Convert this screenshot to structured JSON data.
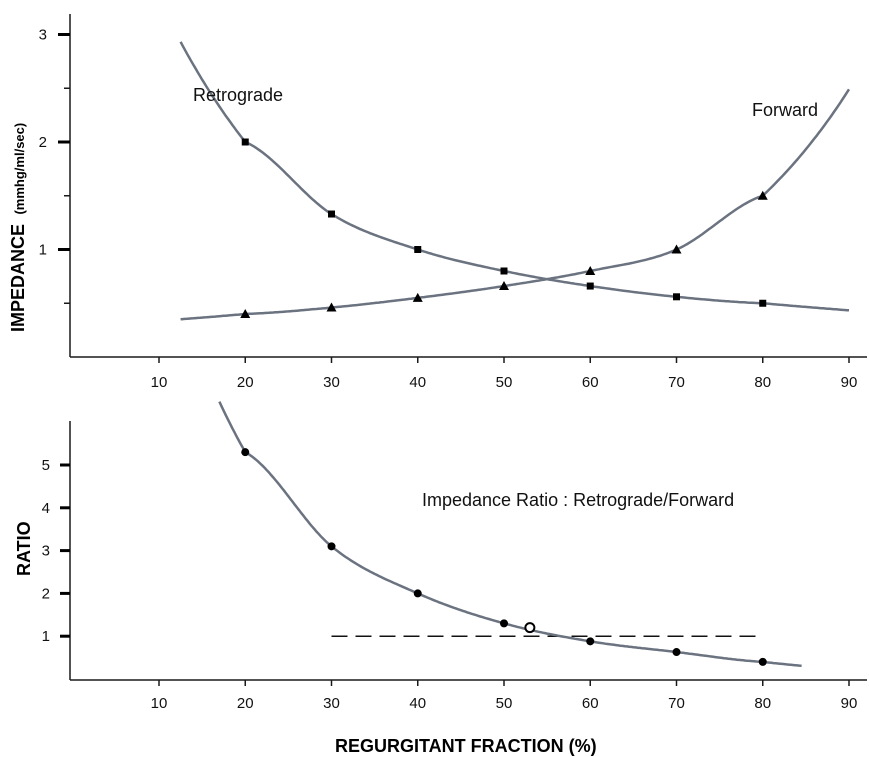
{
  "chart_data": [
    {
      "type": "line",
      "ylabel": "IMPEDANCE",
      "ylabel_unit": "(mmhg/ml/sec)",
      "xlim": [
        0,
        90
      ],
      "ylim": [
        0,
        3
      ],
      "x_ticks": [
        10,
        20,
        30,
        40,
        50,
        60,
        70,
        80,
        90
      ],
      "y_ticks": [
        1,
        2,
        3
      ],
      "series": [
        {
          "name": "Retrograde",
          "marker": "square",
          "x": [
            20,
            30,
            40,
            50,
            60,
            70,
            80
          ],
          "y": [
            2.0,
            1.33,
            1.0,
            0.8,
            0.66,
            0.56,
            0.5
          ]
        },
        {
          "name": "Forward",
          "marker": "triangle",
          "x": [
            20,
            30,
            40,
            50,
            60,
            70,
            80
          ],
          "y": [
            0.4,
            0.46,
            0.55,
            0.66,
            0.8,
            1.0,
            1.5
          ]
        }
      ]
    },
    {
      "type": "line",
      "title": "Impedance Ratio : Retrograde/Forward",
      "xlabel": "REGURGITANT FRACTION (%)",
      "ylabel": "RATIO",
      "xlim": [
        0,
        90
      ],
      "ylim": [
        0,
        6
      ],
      "x_ticks": [
        10,
        20,
        30,
        40,
        50,
        60,
        70,
        80,
        90
      ],
      "y_ticks": [
        1,
        2,
        3,
        4,
        5
      ],
      "series": [
        {
          "name": "Impedance Ratio",
          "marker": "circle",
          "x": [
            20,
            30,
            40,
            50,
            60,
            70,
            80
          ],
          "y": [
            5.3,
            3.1,
            2.0,
            1.3,
            0.88,
            0.63,
            0.4
          ]
        }
      ],
      "reference_line": {
        "y": 1,
        "x": [
          30,
          80
        ],
        "style": "dashed"
      },
      "open_marker": {
        "x": 53,
        "y": 1.2
      }
    }
  ],
  "colors": {
    "curve": "#6b7380",
    "marker": "#000000",
    "axis": "#1a1a1a"
  }
}
